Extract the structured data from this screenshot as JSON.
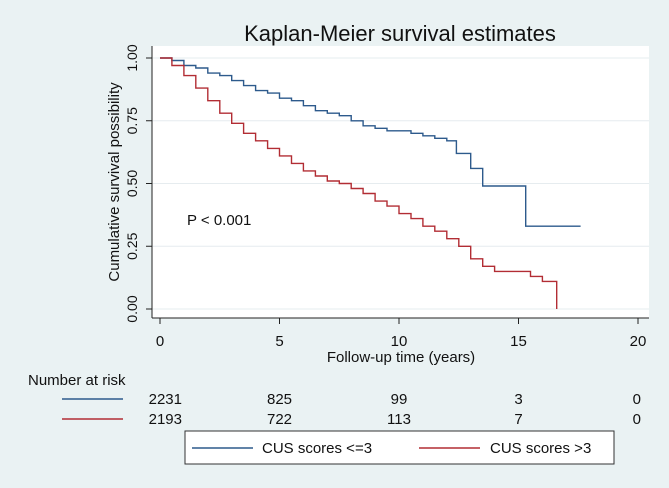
{
  "chart_data": {
    "type": "line",
    "title": "Kaplan-Meier survival estimates",
    "xlabel": "Follow-up time (years)",
    "ylabel": "Cumulative survival possibility",
    "xlim": [
      0,
      20
    ],
    "ylim": [
      0,
      1
    ],
    "xticks": [
      0,
      5,
      10,
      15,
      20
    ],
    "yticks": [
      "0.00",
      "0.25",
      "0.50",
      "0.75",
      "1.00"
    ],
    "annotation": "P < 0.001",
    "grid": true,
    "colors": {
      "low": "#2d5a8c",
      "high": "#b22d34",
      "panel_bg": "#ffffff",
      "page_bg": "#eaf2f3",
      "grid": "#e6ecef"
    },
    "series": [
      {
        "name": "CUS scores <=3",
        "color": "#2d5a8c",
        "x": [
          0,
          0.5,
          1.0,
          1.5,
          2.0,
          2.5,
          3.0,
          3.5,
          4.0,
          4.5,
          5.0,
          5.5,
          6.0,
          6.5,
          7.0,
          7.5,
          8.0,
          8.5,
          9.0,
          9.5,
          10.0,
          10.5,
          11.0,
          11.5,
          12.0,
          12.4,
          12.7,
          13.0,
          13.5,
          14.0,
          14.5,
          15.0,
          15.3,
          16.0,
          16.5,
          17.0,
          17.6
        ],
        "y": [
          1.0,
          0.99,
          0.97,
          0.96,
          0.94,
          0.93,
          0.91,
          0.89,
          0.87,
          0.86,
          0.84,
          0.83,
          0.81,
          0.79,
          0.78,
          0.77,
          0.75,
          0.73,
          0.72,
          0.71,
          0.71,
          0.7,
          0.69,
          0.68,
          0.67,
          0.62,
          0.62,
          0.56,
          0.49,
          0.49,
          0.49,
          0.49,
          0.33,
          0.33,
          0.33,
          0.33,
          0.33
        ]
      },
      {
        "name": "CUS scores >3",
        "color": "#b22d34",
        "x": [
          0,
          0.5,
          1.0,
          1.5,
          2.0,
          2.5,
          3.0,
          3.5,
          4.0,
          4.5,
          5.0,
          5.5,
          6.0,
          6.5,
          7.0,
          7.5,
          8.0,
          8.5,
          9.0,
          9.5,
          10.0,
          10.5,
          11.0,
          11.5,
          12.0,
          12.5,
          13.0,
          13.5,
          14.0,
          14.5,
          15.0,
          15.5,
          16.0,
          16.3,
          16.6
        ],
        "y": [
          1.0,
          0.97,
          0.93,
          0.88,
          0.83,
          0.78,
          0.74,
          0.7,
          0.67,
          0.64,
          0.61,
          0.58,
          0.55,
          0.53,
          0.51,
          0.5,
          0.48,
          0.46,
          0.43,
          0.41,
          0.38,
          0.36,
          0.33,
          0.31,
          0.28,
          0.25,
          0.2,
          0.17,
          0.15,
          0.15,
          0.15,
          0.13,
          0.11,
          0.11,
          0.0
        ]
      }
    ],
    "risk_table": {
      "label": "Number at risk",
      "times": [
        0,
        5,
        10,
        15,
        20
      ],
      "rows": [
        {
          "series": "CUS scores <=3",
          "counts": [
            "2231",
            "825",
            "99",
            "3",
            "0"
          ]
        },
        {
          "series": "CUS scores >3",
          "counts": [
            "2193",
            "722",
            "113",
            "7",
            "0"
          ]
        }
      ]
    },
    "legend": {
      "position": "bottom",
      "entries": [
        "CUS scores <=3",
        "CUS scores >3"
      ]
    }
  }
}
